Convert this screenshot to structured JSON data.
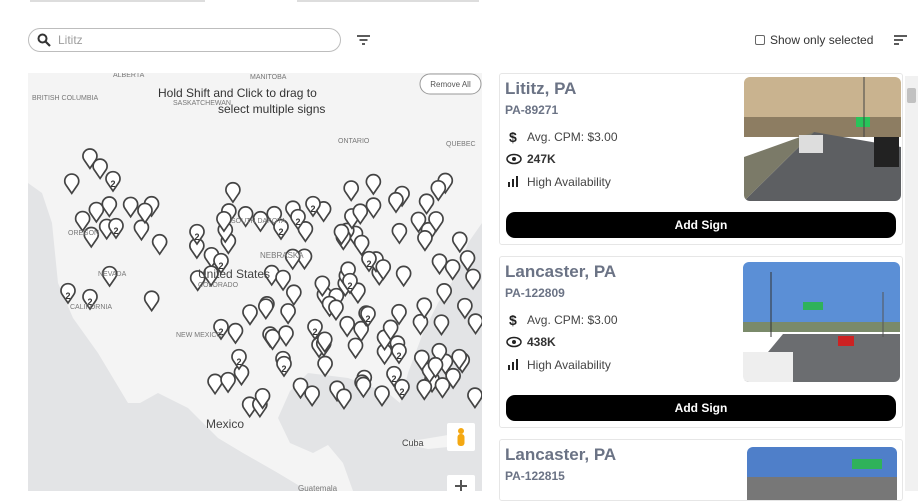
{
  "toolbar": {
    "search_placeholder": "Lititz",
    "show_only_selected": "Show only selected"
  },
  "map": {
    "instruction": "Hold Shift and Click to drag to select multiple signs",
    "remove_all": "Remove All",
    "labels": [
      "ALBERTA",
      "MANITOBA",
      "BRITISH COLUMBIA",
      "SASKATCHEWAN",
      "ONTARIO",
      "QUEBEC",
      "OREGON",
      "SOUTH DAKOTA",
      "NEBRASKA",
      "NEVADA",
      "United States",
      "COLORADO",
      "CALIFORNIA",
      "NEW MEXICO",
      "Mexico",
      "Cuba",
      "Guatemala"
    ],
    "clusters": [
      2,
      2,
      2,
      2,
      2,
      2,
      2,
      2,
      2,
      2,
      2,
      2,
      2,
      2,
      2,
      2,
      2,
      2,
      2,
      2
    ]
  },
  "listings": [
    {
      "title": "Lititz, PA",
      "id": "PA-89271",
      "cpm": "Avg. CPM: $3.00",
      "impressions": "247K",
      "availability": "High Availability",
      "button": "Add Sign"
    },
    {
      "title": "Lancaster, PA",
      "id": "PA-122809",
      "cpm": "Avg. CPM: $3.00",
      "impressions": "438K",
      "availability": "High Availability",
      "button": "Add Sign"
    },
    {
      "title": "Lancaster, PA",
      "id": "PA-122815"
    }
  ]
}
